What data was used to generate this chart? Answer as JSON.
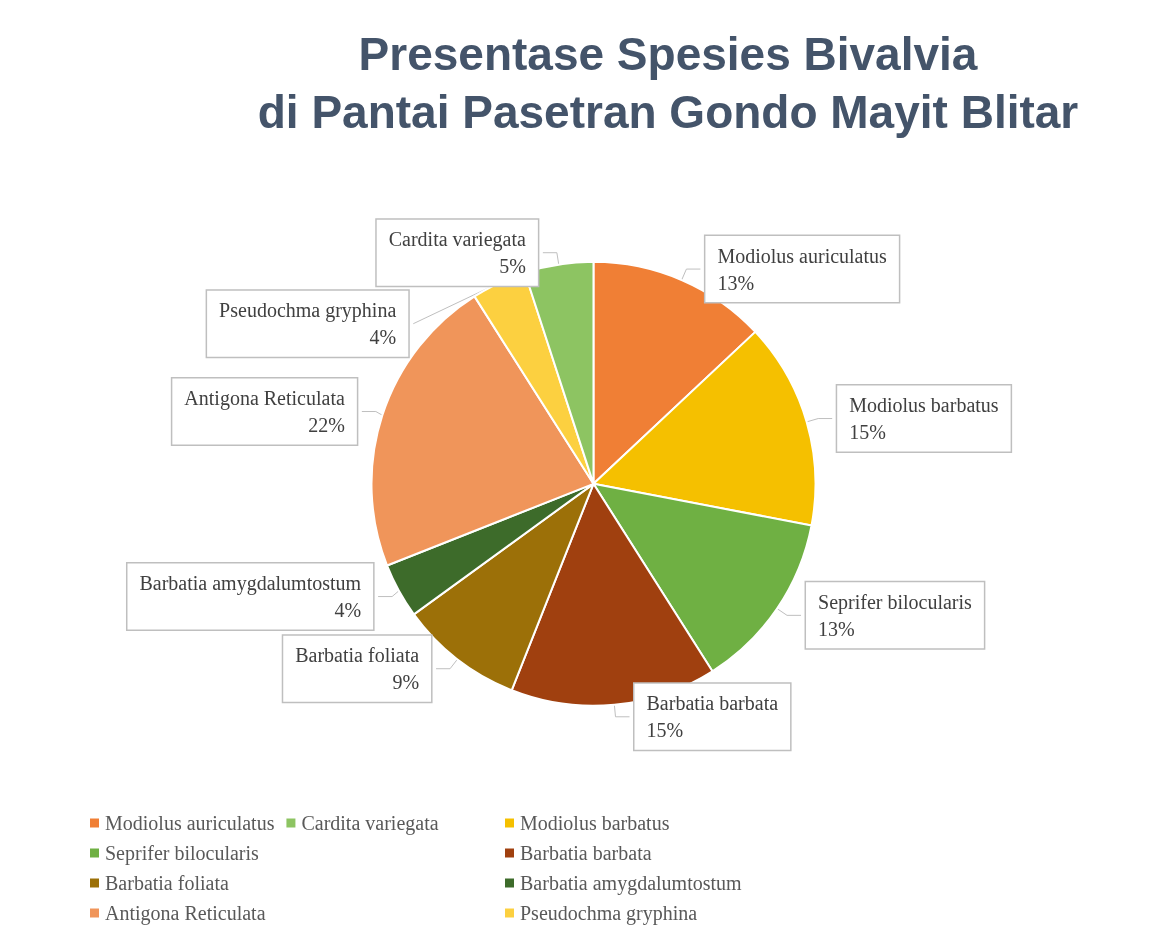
{
  "chart_data": {
    "type": "pie",
    "title": "Presentase Spesies Bivalvia\ndi Pantai Pasetran Gondo Mayit Blitar",
    "categories": [
      "Modiolus auriculatus",
      "Modiolus barbatus",
      "Seprifer bilocularis",
      "Barbatia barbata",
      "Barbatia foliata",
      "Barbatia amygdalumtostum",
      "Antigona Reticulata",
      "Pseudochma gryphina",
      "Cardita variegata"
    ],
    "values": [
      13,
      15,
      13,
      15,
      9,
      4,
      22,
      4,
      5
    ],
    "value_labels": [
      "13%",
      "15%",
      "13%",
      "15%",
      "9%",
      "4%",
      "22%",
      "4%",
      "5%"
    ],
    "colors": [
      "#f07f35",
      "#f5c000",
      "#6fb043",
      "#a0400f",
      "#9c7008",
      "#3d6b2a",
      "#f0955a",
      "#fcd040",
      "#8dc462"
    ],
    "legend": "bottom"
  }
}
